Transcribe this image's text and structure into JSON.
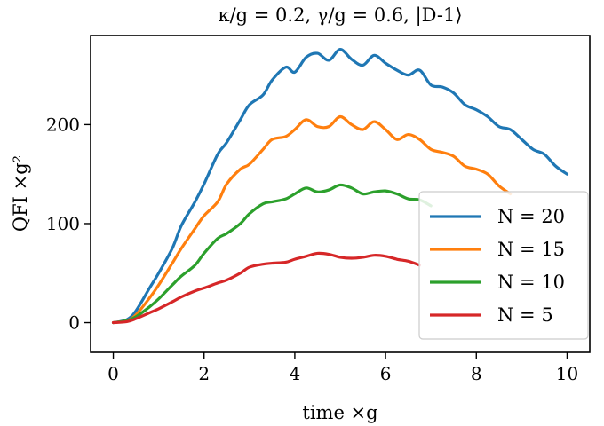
{
  "chart_data": {
    "type": "line",
    "title": "κ/g = 0.2, γ/g = 0.6, |D-1⟩",
    "xlabel": "time ×g",
    "ylabel": "QFI ×g²",
    "xlim": [
      -0.5,
      10.5
    ],
    "ylim": [
      -30,
      290
    ],
    "xticks": [
      0,
      2,
      4,
      6,
      8,
      10
    ],
    "yticks": [
      0,
      100,
      200
    ],
    "grid": false,
    "legend_position": "lower-right",
    "series": [
      {
        "name": "N = 20",
        "color": "#1f77b4",
        "x": [
          0,
          0.3,
          0.5,
          0.8,
          1.0,
          1.3,
          1.5,
          1.8,
          2.0,
          2.3,
          2.5,
          2.8,
          3.0,
          3.3,
          3.5,
          3.8,
          4.0,
          4.25,
          4.5,
          4.75,
          5.0,
          5.25,
          5.5,
          5.75,
          6.0,
          6.25,
          6.5,
          6.75,
          7.0,
          7.25,
          7.5,
          7.75,
          8.0,
          8.25,
          8.5,
          8.75,
          9.0,
          9.25,
          9.5,
          9.75,
          10.0
        ],
        "y": [
          0,
          3,
          12,
          35,
          50,
          75,
          98,
          122,
          140,
          170,
          182,
          205,
          220,
          230,
          245,
          258,
          253,
          268,
          272,
          265,
          276,
          266,
          260,
          270,
          262,
          255,
          250,
          255,
          240,
          238,
          232,
          220,
          215,
          208,
          198,
          195,
          185,
          175,
          170,
          158,
          150
        ]
      },
      {
        "name": "N = 15",
        "color": "#ff7f0e",
        "x": [
          0,
          0.3,
          0.5,
          0.8,
          1.0,
          1.3,
          1.5,
          1.8,
          2.0,
          2.3,
          2.5,
          2.8,
          3.0,
          3.3,
          3.5,
          3.8,
          4.0,
          4.25,
          4.5,
          4.75,
          5.0,
          5.25,
          5.5,
          5.75,
          6.0,
          6.25,
          6.5,
          6.75,
          7.0,
          7.25,
          7.5,
          7.75,
          8.0,
          8.25,
          8.5,
          8.75
        ],
        "y": [
          0,
          2,
          8,
          25,
          38,
          60,
          75,
          95,
          108,
          122,
          140,
          155,
          160,
          175,
          185,
          188,
          195,
          205,
          198,
          198,
          208,
          200,
          195,
          203,
          195,
          185,
          190,
          185,
          175,
          172,
          168,
          158,
          155,
          150,
          138,
          130
        ]
      },
      {
        "name": "N = 10",
        "color": "#2ca02c",
        "x": [
          0,
          0.3,
          0.5,
          0.8,
          1.0,
          1.3,
          1.5,
          1.8,
          2.0,
          2.3,
          2.5,
          2.8,
          3.0,
          3.3,
          3.5,
          3.8,
          4.0,
          4.25,
          4.5,
          4.75,
          5.0,
          5.25,
          5.5,
          5.75,
          6.0,
          6.25,
          6.5,
          6.75,
          7.0
        ],
        "y": [
          0,
          2,
          6,
          16,
          24,
          38,
          47,
          58,
          70,
          85,
          90,
          100,
          110,
          120,
          122,
          125,
          130,
          136,
          132,
          134,
          139,
          136,
          130,
          132,
          133,
          130,
          125,
          124,
          118
        ]
      },
      {
        "name": "N = 5",
        "color": "#d62728",
        "x": [
          0,
          0.3,
          0.5,
          0.8,
          1.0,
          1.3,
          1.5,
          1.8,
          2.0,
          2.3,
          2.5,
          2.8,
          3.0,
          3.3,
          3.5,
          3.8,
          4.0,
          4.25,
          4.5,
          4.75,
          5.0,
          5.25,
          5.5,
          5.75,
          6.0,
          6.25,
          6.5,
          6.75
        ],
        "y": [
          0,
          1,
          4,
          10,
          14,
          21,
          26,
          32,
          35,
          40,
          43,
          50,
          56,
          59,
          60,
          61,
          64,
          67,
          70,
          69,
          66,
          65,
          66,
          68,
          67,
          64,
          62,
          58
        ]
      }
    ]
  }
}
